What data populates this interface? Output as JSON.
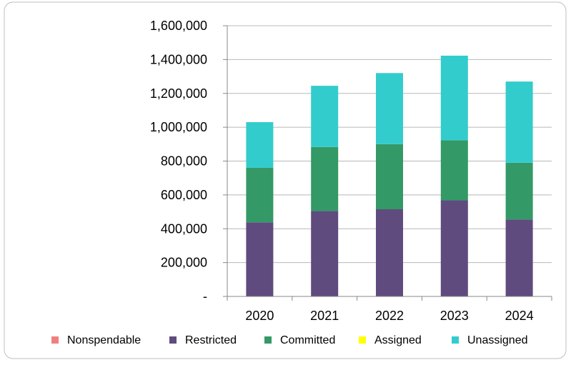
{
  "chart_data": {
    "type": "bar",
    "stacked": true,
    "title": "",
    "xlabel": "",
    "ylabel": "",
    "categories": [
      "2020",
      "2021",
      "2022",
      "2023",
      "2024"
    ],
    "ylim": [
      0,
      1600000
    ],
    "yticks": [
      0,
      200000,
      400000,
      600000,
      800000,
      1000000,
      1200000,
      1400000,
      1600000
    ],
    "ytick_labels": [
      "-",
      "200,000",
      "400,000",
      "600,000",
      "800,000",
      "1,000,000",
      "1,200,000",
      "1,400,000",
      "1,600,000"
    ],
    "grid": true,
    "legend_position": "bottom",
    "series": [
      {
        "name": "Nonspendable",
        "color": "#F08080",
        "values": [
          0,
          0,
          0,
          0,
          0
        ]
      },
      {
        "name": "Restricted",
        "color": "#5F4B7D",
        "values": [
          438000,
          505000,
          515000,
          568000,
          455000
        ]
      },
      {
        "name": "Committed",
        "color": "#339966",
        "values": [
          322000,
          378000,
          385000,
          355000,
          335000
        ]
      },
      {
        "name": "Assigned",
        "color": "#FFFF00",
        "values": [
          0,
          0,
          0,
          0,
          0
        ]
      },
      {
        "name": "Unassigned",
        "color": "#33CCCC",
        "values": [
          270000,
          362000,
          420000,
          500000,
          480000
        ]
      }
    ]
  }
}
